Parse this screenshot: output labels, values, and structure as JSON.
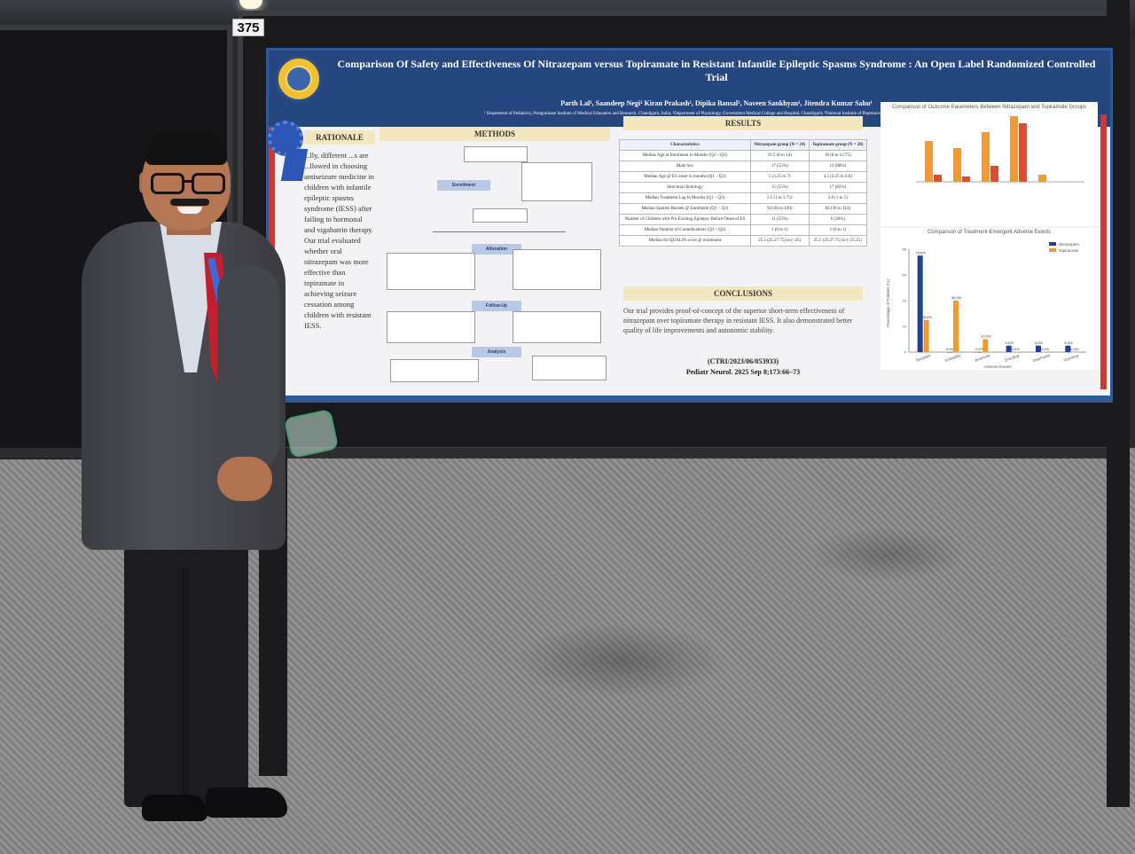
{
  "booth_number": "375",
  "poster": {
    "title": "Comparison Of Safety and Effectiveness Of Nitrazepam versus Topiramate in Resistant Infantile Epileptic Spasms Syndrome : An Open Label Randomized Controlled Trial",
    "authors": "Parth Lal¹, Saandeep Negi¹ Kiran Prakash², Dipika Bansal³, Naveen Sankhyan¹, Jitendra Kumar Sahu¹",
    "affiliations": "¹ Department of Pediatrics, Postgraduate Institute of Medical Education and Research, Chandigarh, India; ²Department of Physiology, Government Medical College and Hospital, Chandigarh; ³National Institute of Pharmaceutical Education and Research, Mohali",
    "sections": {
      "rationale": "RATIONALE",
      "methods": "METHODS",
      "results": "RESULTS",
      "conclusions": "CONCLUSIONS"
    },
    "rationale_text": "...lly, different ...s are ...llowed in choosing antiseizure medicine in children with infantile epileptic spasms syndrome (IESS) after failing to hormonal and vigabatrin therapy. Our trial evaluated whether oral nitrazepam was more effective than topiramate in achieving seizure cessation among children with resistant IESS.",
    "flow": {
      "enrollment": "Enrollment",
      "allocation": "Allocation",
      "followup": "Follow-Up",
      "analysis": "Analysis"
    },
    "table": {
      "headers": [
        "Characteristics",
        "Nitrazepam group (N = 24)",
        "Topiramate group (N = 20)"
      ],
      "rows": [
        [
          "Median Age at Enrolment in Months (Q1 – Q3)",
          "10.5 (8 to 14)",
          "10 (8 to 12.75)"
        ],
        [
          "Male Sex",
          "17 (55%)",
          "13 (68%)"
        ],
        [
          "Median Age @ ES onset in months (Q1 – Q3)",
          "5 (3.25 to 7)",
          "4.5 (2.25 to 6.6)"
        ],
        [
          "Structural Aetiology",
          "15 (55%)",
          "17 (85%)"
        ],
        [
          "Median Treatment Lag In Months (Q1 – Q3)",
          "2.5 (1 to 3.75)",
          "2.0 (1 to 5)"
        ],
        [
          "Median Spasms Burden @ Enrolment (Q1 – Q3)",
          "93 (30 to 130)",
          "82 (30 to 113)"
        ],
        [
          "Number of Children with Pre-Existing Epilepsy Before Onset of ES",
          "11 (55%)",
          "6 (30%)"
        ],
        [
          "Median Number of Comedications (Q1 – Q3)",
          "1 (0 to 1)",
          "1 (0 to 1)"
        ],
        [
          "Median Hi-QUALIN score @ enrolment",
          "25.5 (25.27.75) to (–25)",
          "25.5 (25.27.75) to (–25.25)"
        ]
      ]
    },
    "conclusion_text": "Our trial provides proof-of-concept of the superior short-term effectiveness of nitrazepam over topiramate therapy in resistant IESS. It also demonstrated better quality of life improvements and autonomic stability.",
    "registration": "(CTRI/2023/06/053933)",
    "journal": "Pediatr Neurol. 2025 Sep 8;173:66–73",
    "chart1_title": "Comparison of Outcome Parameters Between Nitrazepam and Topiramate Groups",
    "chart2_title": "Comparison of Treatment-Emergent Adverse Events",
    "chart2_legend": [
      "Nitrazepam",
      "Topiramate"
    ],
    "chart2_categories": [
      "Sedation",
      "Irritability",
      "Anorexia",
      "Drooling",
      "Diarrhoea",
      "Vomiting"
    ],
    "chart2_xlabel": "Adverse Events",
    "chart2_ylabel": "Percentage of Patients (%)",
    "chart2_values_label_first": "75.0%",
    "colors": {
      "nitrazepam": "#1f3f9c",
      "topiramate": "#f39a2b",
      "header": "#25467e",
      "accent": "#d9342b"
    }
  },
  "chart_data": {
    "type": "bar",
    "title": "Comparison of Treatment-Emergent Adverse Events",
    "categories": [
      "Sedation",
      "Irritability",
      "Anorexia",
      "Drooling",
      "Diarrhoea",
      "Vomiting"
    ],
    "series": [
      {
        "name": "Nitrazepam",
        "values": [
          75.0,
          0.0,
          0.0,
          5.0,
          5.0,
          5.0
        ]
      },
      {
        "name": "Topiramate",
        "values": [
          25.0,
          40.0,
          10.0,
          0.0,
          0.0,
          0.0
        ]
      }
    ],
    "xlabel": "Adverse Events",
    "ylabel": "Percentage of Patients (%)",
    "ylim": [
      0,
      80
    ]
  }
}
